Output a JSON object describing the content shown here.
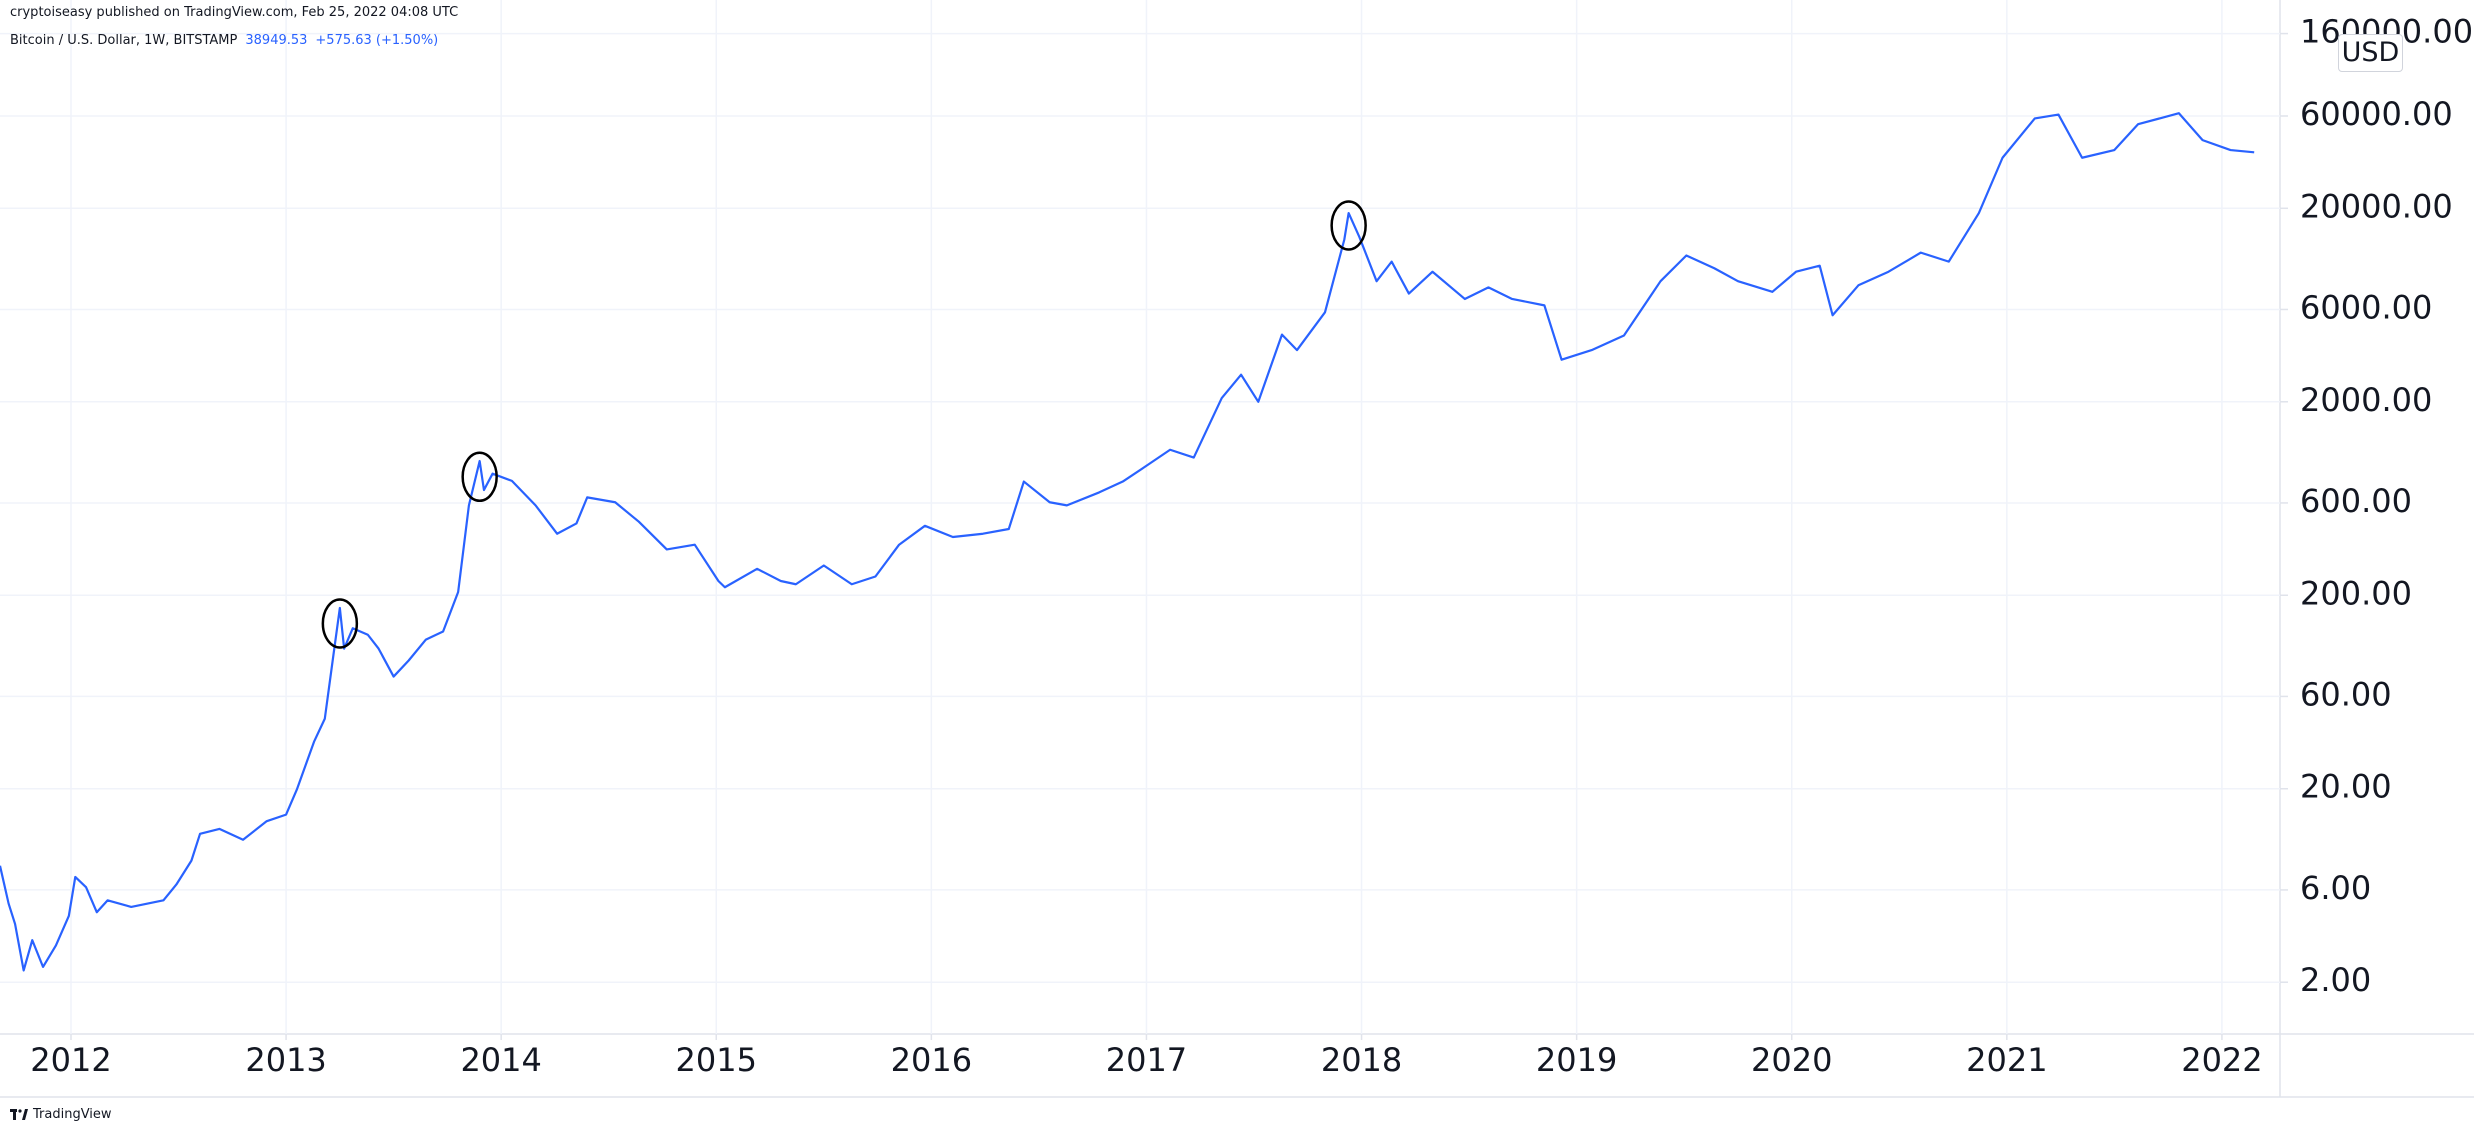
{
  "header": {
    "published": "cryptoiseasy published on TradingView.com, Feb 25, 2022 04:08 UTC"
  },
  "chart_data": {
    "type": "line",
    "log_scale": true,
    "grid": true,
    "price_unit": "USD",
    "last_price": 38949.53,
    "change_label": "+575.63 (+1.50%)",
    "xlim": [
      2011.67,
      2022.27
    ],
    "xticks": [
      2012,
      2013,
      2014,
      2015,
      2016,
      2017,
      2018,
      2019,
      2020,
      2021,
      2022
    ],
    "ylim": [
      1.08,
      173000
    ],
    "yticks": [
      {
        "value": 2,
        "label": "2.00"
      },
      {
        "value": 6,
        "label": "6.00"
      },
      {
        "value": 20,
        "label": "20.00"
      },
      {
        "value": 60,
        "label": "60.00"
      },
      {
        "value": 200,
        "label": "200.00"
      },
      {
        "value": 600,
        "label": "600.00"
      },
      {
        "value": 2000,
        "label": "2000.00"
      },
      {
        "value": 6000,
        "label": "6000.00"
      },
      {
        "value": 20000,
        "label": "20000.00"
      },
      {
        "value": 60000,
        "label": "60000.00"
      },
      {
        "value": 160000,
        "label": "160000.00"
      }
    ],
    "x": [
      2011.67,
      2011.71,
      2011.74,
      2011.78,
      2011.82,
      2011.87,
      2011.93,
      2011.99,
      2012.02,
      2012.07,
      2012.12,
      2012.17,
      2012.28,
      2012.43,
      2012.49,
      2012.56,
      2012.6,
      2012.69,
      2012.8,
      2012.91,
      2013.0,
      2013.05,
      2013.13,
      2013.18,
      2013.22,
      2013.25,
      2013.27,
      2013.31,
      2013.38,
      2013.43,
      2013.5,
      2013.57,
      2013.65,
      2013.73,
      2013.8,
      2013.85,
      2013.9,
      2013.92,
      2013.96,
      2014.05,
      2014.16,
      2014.26,
      2014.35,
      2014.4,
      2014.53,
      2014.64,
      2014.77,
      2014.9,
      2015.01,
      2015.04,
      2015.19,
      2015.3,
      2015.37,
      2015.5,
      2015.63,
      2015.74,
      2015.85,
      2015.97,
      2016.1,
      2016.24,
      2016.36,
      2016.43,
      2016.55,
      2016.63,
      2016.78,
      2016.89,
      2017.0,
      2017.11,
      2017.22,
      2017.35,
      2017.44,
      2017.52,
      2017.63,
      2017.7,
      2017.83,
      2017.92,
      2017.94,
      2017.99,
      2018.07,
      2018.14,
      2018.22,
      2018.33,
      2018.48,
      2018.59,
      2018.7,
      2018.85,
      2018.93,
      2019.07,
      2019.22,
      2019.39,
      2019.51,
      2019.64,
      2019.75,
      2019.91,
      2020.02,
      2020.13,
      2020.19,
      2020.31,
      2020.45,
      2020.6,
      2020.73,
      2020.87,
      2020.98,
      2021.13,
      2021.24,
      2021.35,
      2021.5,
      2021.61,
      2021.8,
      2021.91,
      2022.04,
      2022.15
    ],
    "series": [
      {
        "name": "Bitcoin / U.S. Dollar, 1W, BITSTAMP",
        "color": "#2962ff",
        "values": [
          8.0,
          5.1,
          4.0,
          2.3,
          3.3,
          2.4,
          3.1,
          4.4,
          7.0,
          6.2,
          4.6,
          5.3,
          4.9,
          5.3,
          6.4,
          8.5,
          11.7,
          12.4,
          10.9,
          13.6,
          14.7,
          19.8,
          35,
          46,
          98,
          172,
          106,
          135,
          125,
          106,
          76,
          92,
          118,
          130,
          208,
          583,
          988,
          700,
          850,
          780,
          583,
          416,
          470,
          641,
          605,
          480,
          345,
          365,
          237,
          220,
          274,
          237,
          228,
          285,
          228,
          250,
          365,
          457,
          400,
          416,
          440,
          774,
          605,
          583,
          680,
          774,
          934,
          1130,
          1030,
          2090,
          2760,
          2000,
          4450,
          3700,
          5800,
          13800,
          18900,
          14200,
          8400,
          10600,
          7250,
          9400,
          6800,
          7800,
          6800,
          6300,
          3300,
          3700,
          4400,
          8400,
          11400,
          9800,
          8400,
          7400,
          9400,
          10100,
          5600,
          8000,
          9400,
          11800,
          10600,
          18900,
          36500,
          58300,
          61000,
          36500,
          40000,
          54400,
          62000,
          45000,
          40000,
          38949.53
        ]
      }
    ],
    "circled_points": [
      {
        "x": 2013.25,
        "y": 143
      },
      {
        "x": 2013.9,
        "y": 819
      },
      {
        "x": 2017.94,
        "y": 16300
      }
    ]
  },
  "footer": {
    "brand": "TradingView"
  }
}
